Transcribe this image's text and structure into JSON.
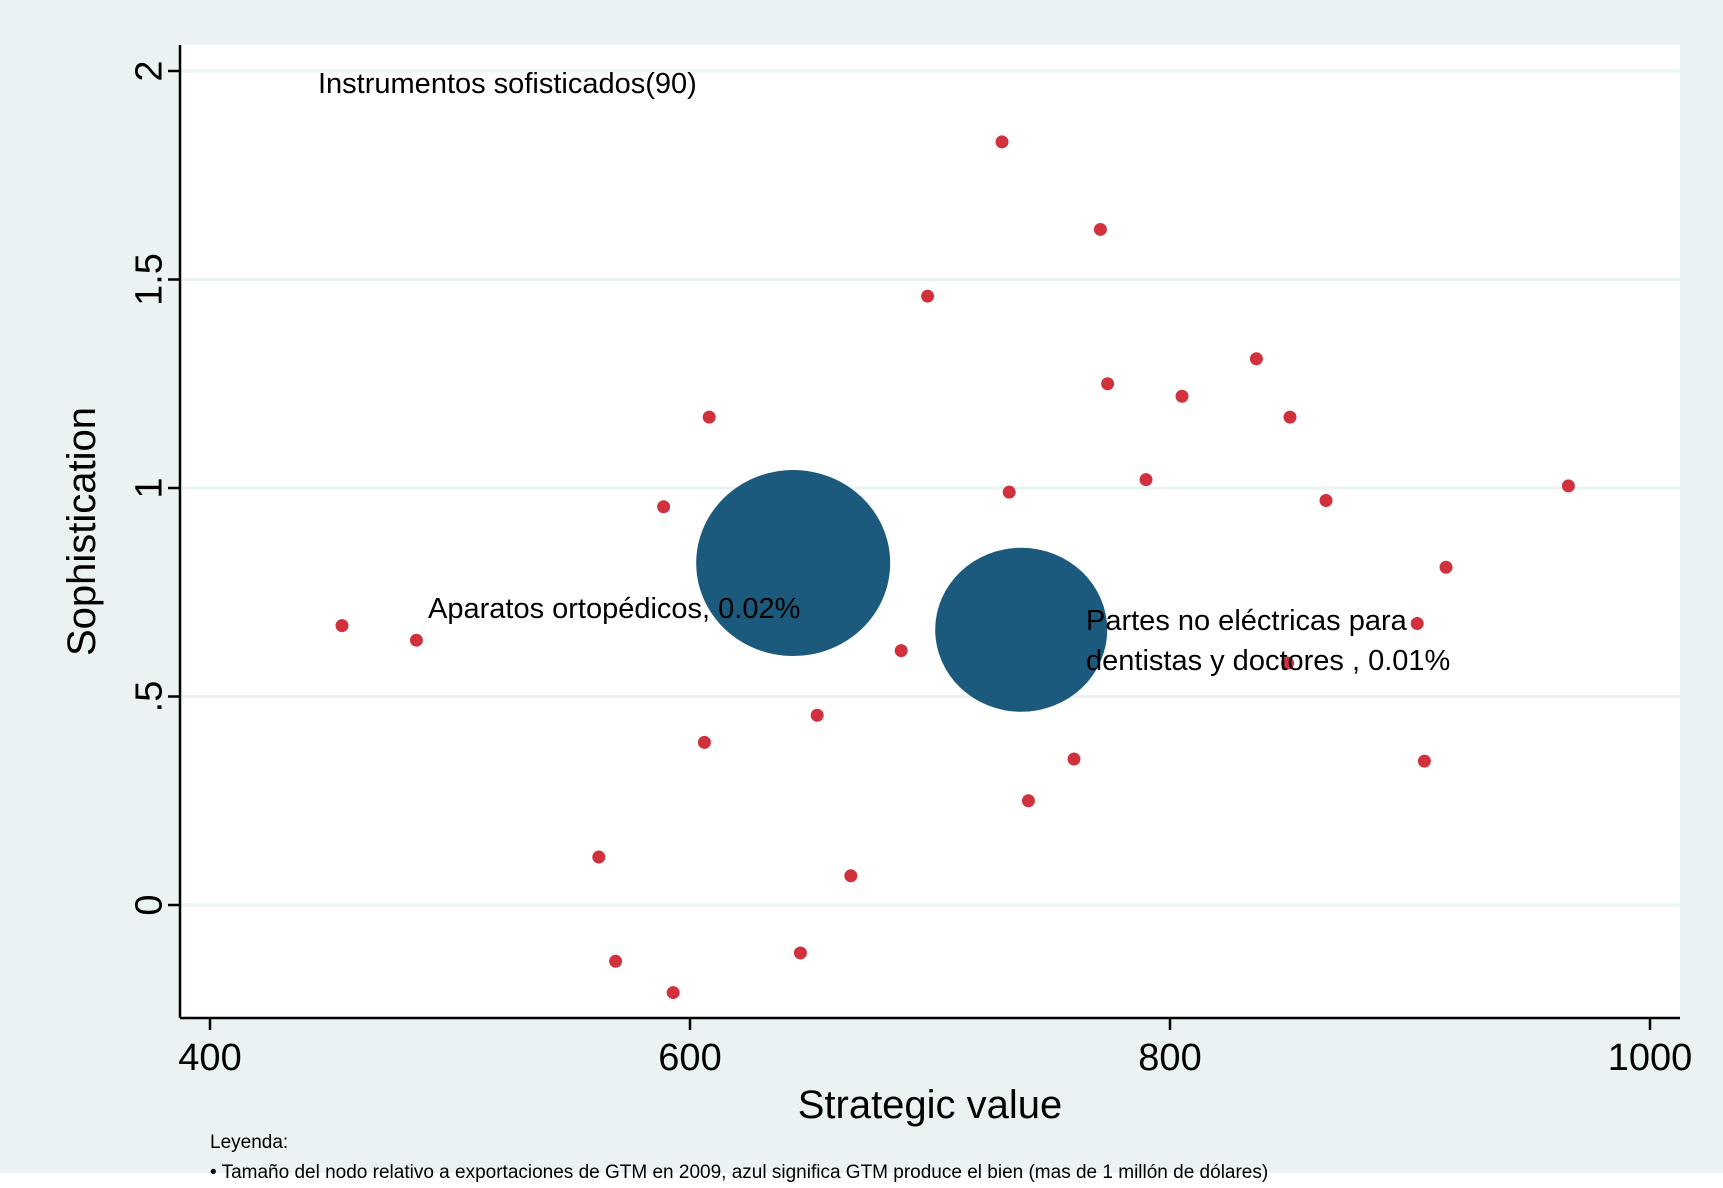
{
  "chart_data": {
    "type": "scatter",
    "xlabel": "Strategic value",
    "ylabel": "Sophistication",
    "xlim": [
      400,
      1000
    ],
    "ylim": [
      -0.27,
      2.07
    ],
    "x_ticks": [
      {
        "value": 400,
        "label": "400"
      },
      {
        "value": 600,
        "label": "600"
      },
      {
        "value": 800,
        "label": "800"
      },
      {
        "value": 1000,
        "label": "1000"
      }
    ],
    "y_ticks": [
      {
        "value": 0,
        "label": "0"
      },
      {
        "value": 0.5,
        "label": ".5"
      },
      {
        "value": 1,
        "label": "1"
      },
      {
        "value": 1.5,
        "label": "1.5"
      },
      {
        "value": 2,
        "label": "2"
      }
    ],
    "grid": true,
    "colors": {
      "small": "#d1313d",
      "large": "#1b5a7c",
      "plot_bg": "#ffffff",
      "frame_bg": "#eaf2f3",
      "grid": "#eaf2f3"
    },
    "points": [
      {
        "x": 730,
        "y": 1.83
      },
      {
        "x": 771,
        "y": 1.62
      },
      {
        "x": 699,
        "y": 1.46
      },
      {
        "x": 836,
        "y": 1.31
      },
      {
        "x": 774,
        "y": 1.25
      },
      {
        "x": 805,
        "y": 1.22
      },
      {
        "x": 850,
        "y": 1.17
      },
      {
        "x": 608,
        "y": 1.17
      },
      {
        "x": 790,
        "y": 1.02
      },
      {
        "x": 966,
        "y": 1.005
      },
      {
        "x": 733,
        "y": 0.99
      },
      {
        "x": 865,
        "y": 0.97
      },
      {
        "x": 589,
        "y": 0.955
      },
      {
        "x": 915,
        "y": 0.81
      },
      {
        "x": 455,
        "y": 0.67
      },
      {
        "x": 486,
        "y": 0.635
      },
      {
        "x": 771,
        "y": 0.68
      },
      {
        "x": 903,
        "y": 0.675
      },
      {
        "x": 688,
        "y": 0.61
      },
      {
        "x": 849,
        "y": 0.58
      },
      {
        "x": 653,
        "y": 0.455
      },
      {
        "x": 606,
        "y": 0.39
      },
      {
        "x": 760,
        "y": 0.35
      },
      {
        "x": 906,
        "y": 0.345
      },
      {
        "x": 741,
        "y": 0.25
      },
      {
        "x": 562,
        "y": 0.115
      },
      {
        "x": 667,
        "y": 0.07
      },
      {
        "x": 569,
        "y": -0.135
      },
      {
        "x": 646,
        "y": -0.115
      },
      {
        "x": 593,
        "y": -0.21
      }
    ],
    "bubbles": [
      {
        "x": 643,
        "y": 0.82,
        "label": "Aparatos ortopédicos, 0.02%"
      },
      {
        "x": 738,
        "y": 0.66,
        "label_lines": [
          "Partes no eléctricas para",
          "dentistas y doctores , 0.01%"
        ]
      }
    ],
    "annotations": {
      "group_title": "Instrumentos sofisticados(90)"
    }
  },
  "legend": {
    "title": "Leyenda:",
    "items": [
      "• Tamaño del nodo relativo a exportaciones de GTM en 2009, azul significa GTM produce el bien (mas de 1 millón de dólares)"
    ]
  }
}
